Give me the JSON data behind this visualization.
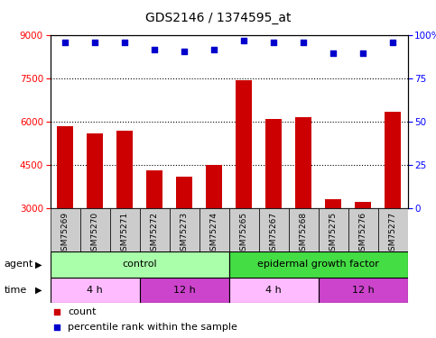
{
  "title": "GDS2146 / 1374595_at",
  "samples": [
    "GSM75269",
    "GSM75270",
    "GSM75271",
    "GSM75272",
    "GSM75273",
    "GSM75274",
    "GSM75265",
    "GSM75267",
    "GSM75268",
    "GSM75275",
    "GSM75276",
    "GSM75277"
  ],
  "counts": [
    5850,
    5600,
    5700,
    4300,
    4100,
    4500,
    7450,
    6100,
    6150,
    3300,
    3200,
    6350
  ],
  "percentiles": [
    96,
    96,
    96,
    92,
    91,
    92,
    97,
    96,
    96,
    90,
    90,
    96
  ],
  "ymin": 3000,
  "ymax": 9000,
  "yticks": [
    3000,
    4500,
    6000,
    7500,
    9000
  ],
  "bar_color": "#cc0000",
  "dot_color": "#0000cc",
  "agent_groups": [
    {
      "label": "control",
      "start": 0,
      "end": 6,
      "color": "#aaffaa"
    },
    {
      "label": "epidermal growth factor",
      "start": 6,
      "end": 12,
      "color": "#44dd44"
    }
  ],
  "time_groups": [
    {
      "label": "4 h",
      "start": 0,
      "end": 3,
      "color": "#ffbbff"
    },
    {
      "label": "12 h",
      "start": 3,
      "end": 6,
      "color": "#cc44cc"
    },
    {
      "label": "4 h",
      "start": 6,
      "end": 9,
      "color": "#ffbbff"
    },
    {
      "label": "12 h",
      "start": 9,
      "end": 12,
      "color": "#cc44cc"
    }
  ],
  "right_yticks_pct": [
    0,
    25,
    50,
    75,
    100
  ],
  "right_ylabels": [
    "0",
    "25",
    "50",
    "75",
    "100%"
  ],
  "sample_bg_color": "#cccccc",
  "fig_bg_color": "#ffffff",
  "grid_color": "#000000",
  "bar_width": 0.55
}
